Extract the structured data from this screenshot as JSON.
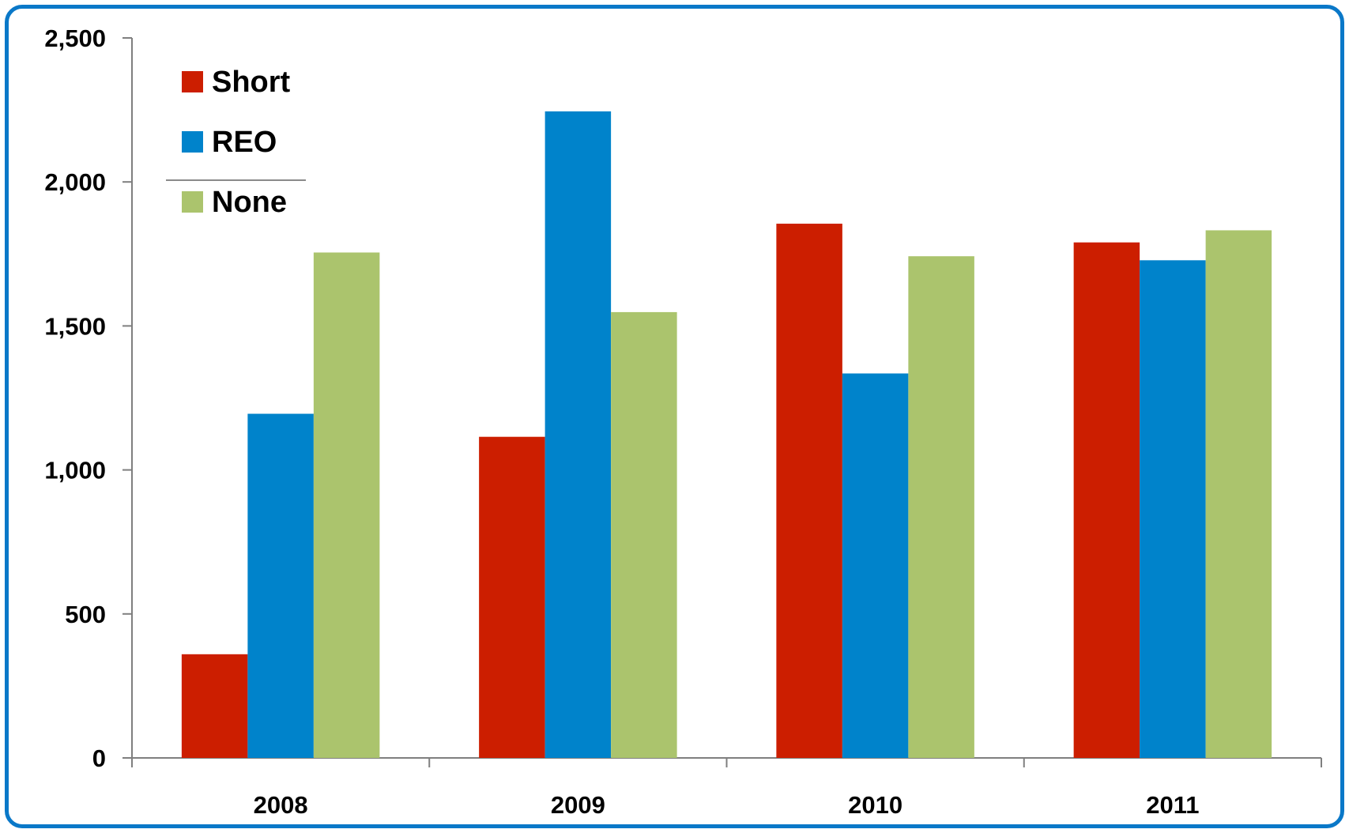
{
  "chart_data": {
    "type": "bar",
    "title": "",
    "xlabel": "",
    "ylabel": "",
    "categories": [
      "2008",
      "2009",
      "2010",
      "2011"
    ],
    "series": [
      {
        "name": "Short",
        "values": [
          360,
          1115,
          1855,
          1790
        ]
      },
      {
        "name": "REO",
        "values": [
          1195,
          2245,
          1335,
          1728
        ]
      },
      {
        "name": "None",
        "values": [
          1755,
          1548,
          1742,
          1832
        ]
      }
    ],
    "colors": [
      "#cc1e00",
      "#0083cb",
      "#abc46d"
    ],
    "ylim": [
      0,
      2500
    ],
    "yticks": [
      0,
      500,
      1000,
      1500,
      2000,
      2500
    ],
    "ytick_labels": [
      "0",
      "500",
      "1,000",
      "1,500",
      "2,000",
      "2,500"
    ],
    "grid": false,
    "legend_position": "top-left",
    "frame_color": "#0a78c8"
  }
}
